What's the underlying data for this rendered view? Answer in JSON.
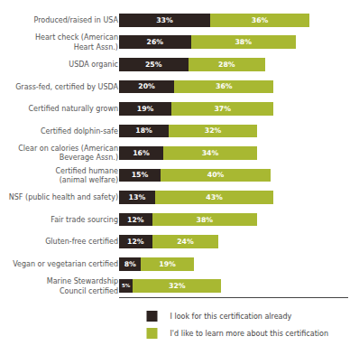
{
  "chart_data": {
    "type": "bar",
    "orientation": "horizontal",
    "stacked": true,
    "categories": [
      "Produced/raised in USA",
      "Heart check (American\nHeart Assn.)",
      "USDA organic",
      "Grass-fed, certified by USDA",
      "Certified naturally grown",
      "Certified dolphin-safe",
      "Clear on calories (American\nBeverage Assn.)",
      "Certified humane\n(animal welfare)",
      "NSF (public health and safety)",
      "Fair trade sourcing",
      "Gluten-free certified",
      "Vegan or vegetarian certified",
      "Marine Stewardship\nCouncil certified"
    ],
    "series": [
      {
        "name": "I look for this certification already",
        "color": "#2d2320",
        "values": [
          33,
          26,
          25,
          20,
          19,
          18,
          16,
          15,
          13,
          12,
          12,
          8,
          5
        ],
        "value_labels": [
          "33%",
          "26%",
          "25%",
          "20%",
          "19%",
          "18%",
          "16%",
          "15%",
          "13%",
          "12%",
          "12%",
          "8%",
          "5%"
        ]
      },
      {
        "name": "I'd like to learn more about this certification",
        "color": "#a8b832",
        "values": [
          36,
          38,
          28,
          36,
          37,
          32,
          34,
          40,
          43,
          38,
          24,
          19,
          32
        ],
        "value_labels": [
          "36%",
          "38%",
          "28%",
          "36%",
          "37%",
          "32%",
          "34%",
          "40%",
          "43%",
          "38%",
          "24%",
          "19%",
          "32%"
        ]
      }
    ],
    "xlim": [
      0,
      83
    ],
    "data_labels": true,
    "tick_labels": "y",
    "grid": false,
    "legend": "bottom"
  }
}
